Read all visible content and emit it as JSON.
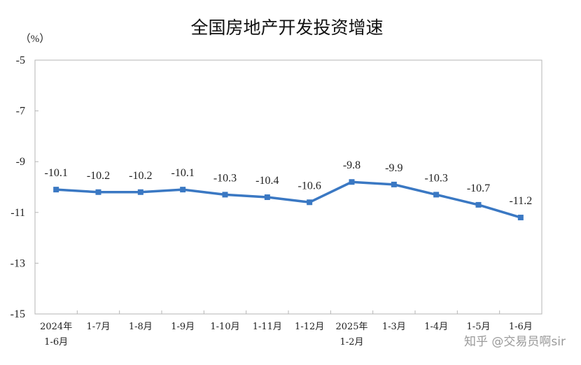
{
  "chart_data": {
    "type": "line",
    "title": "全国房地产开发投资增速",
    "unit_label": "（%）",
    "categories": [
      [
        "2024年",
        "1-6月"
      ],
      [
        "1-7月"
      ],
      [
        "1-8月"
      ],
      [
        "1-9月"
      ],
      [
        "1-10月"
      ],
      [
        "1-11月"
      ],
      [
        "1-12月"
      ],
      [
        "2025年",
        "1-2月"
      ],
      [
        "1-3月"
      ],
      [
        "1-4月"
      ],
      [
        "1-5月"
      ],
      [
        "1-6月"
      ]
    ],
    "values": [
      -10.1,
      -10.2,
      -10.2,
      -10.1,
      -10.3,
      -10.4,
      -10.6,
      -9.8,
      -9.9,
      -10.3,
      -10.7,
      -11.2
    ],
    "data_labels": [
      "-10.1",
      "-10.2",
      "-10.2",
      "-10.1",
      "-10.3",
      "-10.4",
      "-10.6",
      "-9.8",
      "-9.9",
      "-10.3",
      "-10.7",
      "-11.2"
    ],
    "ylim": [
      -15,
      -5
    ],
    "yticks": [
      -5,
      -7,
      -9,
      -11,
      -13,
      -15
    ],
    "grid": false,
    "colors": {
      "line": "#3a78c3",
      "axis": "#b5b5b5"
    }
  },
  "watermark": "知乎 @交易员啊sir"
}
